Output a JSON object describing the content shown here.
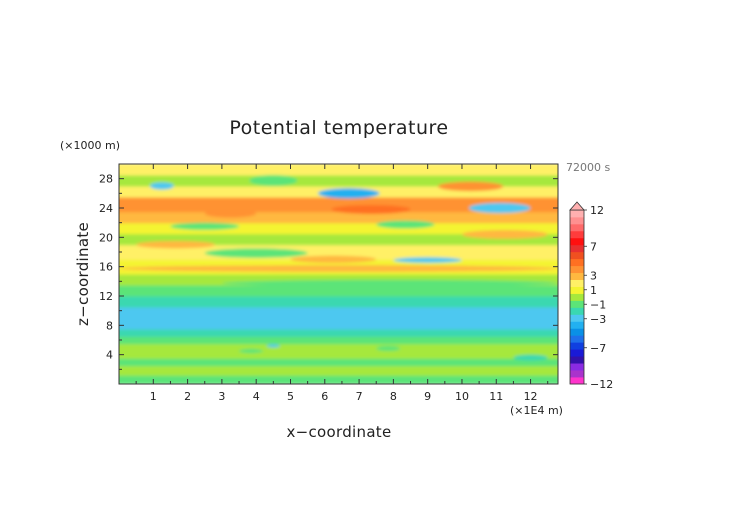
{
  "chart_data": {
    "type": "heatmap",
    "title": "Potential temperature",
    "xlabel": "x−coordinate",
    "ylabel": "z−coordinate",
    "x_unit": "(×1E4 m)",
    "y_unit": "(×1000 m)",
    "time_label": "72000 s",
    "xlim": [
      0,
      12.8
    ],
    "ylim": [
      0,
      30
    ],
    "x_ticks": [
      1,
      2,
      3,
      4,
      5,
      6,
      7,
      8,
      9,
      10,
      11,
      12
    ],
    "y_ticks": [
      4,
      8,
      12,
      16,
      20,
      24,
      28
    ],
    "x_tick_labels": [
      "1",
      "2",
      "3",
      "4",
      "5",
      "6",
      "7",
      "8",
      "9",
      "10",
      "11",
      "12"
    ],
    "y_tick_labels": [
      "4",
      "8",
      "12",
      "16",
      "20",
      "24",
      "28"
    ],
    "colorbar": {
      "levels": [
        -12,
        -11,
        -10,
        -9,
        -8,
        -7,
        -6,
        -5,
        -4,
        -3,
        -2,
        -1,
        0,
        1,
        2,
        3,
        4,
        5,
        6,
        7,
        8,
        9,
        10,
        11,
        12
      ],
      "colors": [
        "#ff33cc",
        "#aa33cc",
        "#8a2be2",
        "#3311aa",
        "#1a1ad6",
        "#1040e0",
        "#1e70ea",
        "#0a90e6",
        "#22b0f0",
        "#4ec8f0",
        "#3ad8b0",
        "#5ce478",
        "#a6e83c",
        "#f4f432",
        "#fff066",
        "#ffb840",
        "#ff9233",
        "#ff7022",
        "#f05020",
        "#e83030",
        "#ff1010",
        "#ff3c3c",
        "#ff6a6a",
        "#ff9090",
        "#ffb0b0"
      ],
      "labels": [
        "12",
        "7",
        "3",
        "1",
        "−1",
        "−3",
        "−7",
        "−12"
      ]
    },
    "bands": [
      {
        "z": [
          0,
          1.2
        ],
        "value": -0.6
      },
      {
        "z": [
          1.2,
          2.5
        ],
        "value": 0.3
      },
      {
        "z": [
          2.5,
          3.5
        ],
        "value": -0.6
      },
      {
        "z": [
          3.5,
          4.5
        ],
        "value": 0.4
      },
      {
        "z": [
          4.5,
          5.5
        ],
        "value": 0.8
      },
      {
        "z": [
          5.5,
          6.5
        ],
        "value": -0.7
      },
      {
        "z": [
          6.5,
          7.5
        ],
        "value": -1.3
      },
      {
        "z": [
          7.5,
          10.5
        ],
        "value": -2.8
      },
      {
        "z": [
          10.5,
          12.0
        ],
        "value": -1.6
      },
      {
        "z": [
          12.0,
          13.5
        ],
        "value": -0.8
      },
      {
        "z": [
          13.5,
          15.0
        ],
        "value": 0.6
      },
      {
        "z": [
          15.0,
          17.0
        ],
        "value": 1.8
      },
      {
        "z": [
          17.0,
          19.0
        ],
        "value": 2.8
      },
      {
        "z": [
          19.0,
          20.5
        ],
        "value": 0.5
      },
      {
        "z": [
          20.5,
          22.0
        ],
        "value": 1.8
      },
      {
        "z": [
          22.0,
          23.5
        ],
        "value": 3.0
      },
      {
        "z": [
          23.5,
          25.5
        ],
        "value": 4.0
      },
      {
        "z": [
          25.5,
          27.0
        ],
        "value": 2.5
      },
      {
        "z": [
          27.0,
          28.5
        ],
        "value": 0.8
      },
      {
        "z": [
          28.5,
          30.0
        ],
        "value": 2.2
      }
    ],
    "features": [
      {
        "x": [
          0.9,
          1.6
        ],
        "z": [
          26.5,
          27.5
        ],
        "value": -2.5
      },
      {
        "x": [
          5.8,
          7.6
        ],
        "z": [
          25.3,
          26.7
        ],
        "value": -4.0
      },
      {
        "x": [
          10.2,
          12.0
        ],
        "z": [
          23.3,
          24.7
        ],
        "value": -3.0
      },
      {
        "x": [
          3.8,
          5.2
        ],
        "z": [
          27.0,
          28.5
        ],
        "value": -1.0
      },
      {
        "x": [
          9.3,
          11.2
        ],
        "z": [
          26.3,
          27.6
        ],
        "value": 4.0
      },
      {
        "x": [
          0.0,
          2.0
        ],
        "z": [
          24.0,
          25.2
        ],
        "value": 4.5
      },
      {
        "x": [
          2.5,
          4.0
        ],
        "z": [
          22.7,
          23.8
        ],
        "value": 4.0
      },
      {
        "x": [
          6.2,
          8.5
        ],
        "z": [
          23.2,
          24.4
        ],
        "value": 5.0
      },
      {
        "x": [
          1.5,
          3.5
        ],
        "z": [
          21.0,
          22.0
        ],
        "value": -1.0
      },
      {
        "x": [
          7.5,
          9.2
        ],
        "z": [
          21.2,
          22.3
        ],
        "value": -0.5
      },
      {
        "x": [
          10.0,
          12.5
        ],
        "z": [
          19.8,
          21.0
        ],
        "value": 3.5
      },
      {
        "x": [
          0.5,
          2.8
        ],
        "z": [
          18.5,
          19.5
        ],
        "value": 3.5
      },
      {
        "x": [
          2.5,
          5.5
        ],
        "z": [
          17.2,
          18.5
        ],
        "value": -0.8
      },
      {
        "x": [
          5.0,
          7.5
        ],
        "z": [
          16.5,
          17.5
        ],
        "value": 3.0
      },
      {
        "x": [
          8.0,
          10.0
        ],
        "z": [
          16.5,
          17.3
        ],
        "value": -2.5
      },
      {
        "x": [
          0.0,
          12.8
        ],
        "z": [
          15.3,
          16.2
        ],
        "value": 3.2
      },
      {
        "x": [
          3.0,
          12.8
        ],
        "z": [
          13.3,
          14.2
        ],
        "value": -0.5
      },
      {
        "x": [
          3.5,
          4.2
        ],
        "z": [
          4.2,
          4.8
        ],
        "value": -1.0
      },
      {
        "x": [
          7.5,
          8.2
        ],
        "z": [
          4.5,
          5.2
        ],
        "value": -0.6
      },
      {
        "x": [
          11.5,
          12.5
        ],
        "z": [
          3.2,
          4.0
        ],
        "value": -1.5
      },
      {
        "x": [
          4.3,
          4.7
        ],
        "z": [
          5.0,
          5.4
        ],
        "value": -3.0
      }
    ]
  }
}
